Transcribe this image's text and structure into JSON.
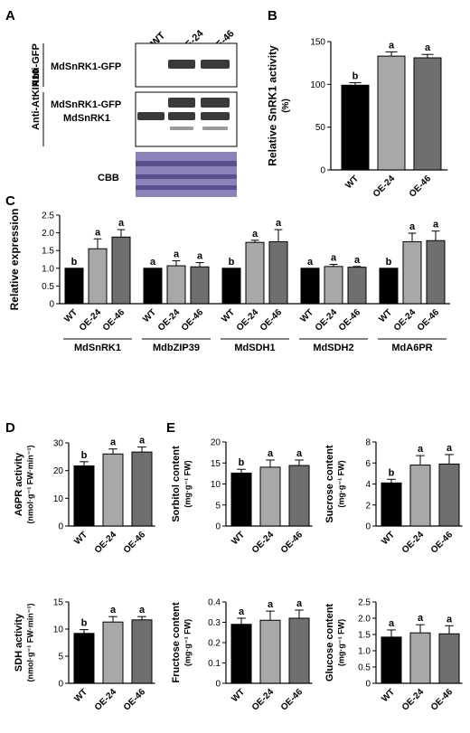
{
  "colors": {
    "wt": "#000000",
    "oe24": "#a8a8a8",
    "oe46": "#6f6f6f",
    "blot_band": "#3a3a3a",
    "cbb_gel": "#8c84b8",
    "cbb_band": "#5a4f90"
  },
  "panel_letters": {
    "a": "A",
    "b": "B",
    "c": "C",
    "d": "D",
    "e": "E"
  },
  "blot": {
    "lanes": [
      "WT",
      "OE-24",
      "OE-46"
    ],
    "antibody_gfp": "Anti-GFP",
    "antibody_snf": "Anti-AtKIN10",
    "top_band_label": "MdSnRK1-GFP",
    "mid_band_label_1": "MdSnRK1-GFP",
    "mid_band_label_2": "MdSnRK1",
    "cbb_label": "CBB"
  },
  "groups": [
    "WT",
    "OE-24",
    "OE-46"
  ],
  "chart_data": [
    {
      "id": "B",
      "type": "bar",
      "categories": [
        "WT",
        "OE-24",
        "OE-46"
      ],
      "values": [
        99,
        133,
        131
      ],
      "errors": [
        3,
        5,
        4
      ],
      "letters": [
        "b",
        "a",
        "a"
      ],
      "ylabel": "Relative SnRK1 activity\n(%)",
      "ylim": [
        0,
        150
      ],
      "yticks": [
        0,
        50,
        100,
        150
      ]
    },
    {
      "id": "C",
      "type": "bar",
      "genes": [
        "MdSnRK1",
        "MdbZIP39",
        "MdSDH1",
        "MdSDH2",
        "MdA6PR"
      ],
      "series": [
        {
          "name": "WT",
          "values": [
            1.0,
            1.0,
            1.0,
            1.0,
            1.0
          ],
          "errors": [
            0,
            0,
            0,
            0,
            0
          ]
        },
        {
          "name": "OE-24",
          "values": [
            1.55,
            1.07,
            1.73,
            1.05,
            1.75
          ],
          "errors": [
            0.28,
            0.14,
            0.06,
            0.06,
            0.24
          ]
        },
        {
          "name": "OE-46",
          "values": [
            1.88,
            1.04,
            1.75,
            1.03,
            1.78
          ],
          "errors": [
            0.21,
            0.12,
            0.34,
            0.02,
            0.27
          ]
        }
      ],
      "letters": [
        [
          "b",
          "a",
          "a"
        ],
        [
          "a",
          "a",
          "a"
        ],
        [
          "b",
          "a",
          "a"
        ],
        [
          "a",
          "a",
          "a"
        ],
        [
          "b",
          "a",
          "a"
        ]
      ],
      "ylabel": "Relative expression",
      "ylim": [
        0,
        2.5
      ],
      "yticks": [
        0,
        0.5,
        1.0,
        1.5,
        2.0,
        2.5
      ]
    },
    {
      "id": "D1",
      "type": "bar",
      "categories": [
        "WT",
        "OE-24",
        "OE-46"
      ],
      "values": [
        21.7,
        26.0,
        26.7
      ],
      "errors": [
        1.5,
        1.8,
        1.8
      ],
      "letters": [
        "b",
        "a",
        "a"
      ],
      "ylabel": "A6PR activity\n(nmol·g⁻¹ FW·min⁻¹)",
      "ylim": [
        0,
        30
      ],
      "yticks": [
        0,
        10,
        20,
        30
      ]
    },
    {
      "id": "D2",
      "type": "bar",
      "categories": [
        "WT",
        "OE-24",
        "OE-46"
      ],
      "values": [
        9.2,
        11.3,
        11.7
      ],
      "errors": [
        0.7,
        1.0,
        0.6
      ],
      "letters": [
        "b",
        "a",
        "a"
      ],
      "ylabel": "SDH activity\n(nmol·g⁻¹ FW·min⁻¹)",
      "ylim": [
        0,
        15
      ],
      "yticks": [
        0,
        5,
        10,
        15
      ]
    },
    {
      "id": "E1",
      "type": "bar",
      "categories": [
        "WT",
        "OE-24",
        "OE-46"
      ],
      "values": [
        12.6,
        14.0,
        14.4
      ],
      "errors": [
        0.9,
        1.7,
        1.3
      ],
      "letters": [
        "b",
        "a",
        "a"
      ],
      "ylabel": "Sorbitol content\n(mg·g⁻¹ FW)",
      "ylim": [
        0,
        20
      ],
      "yticks": [
        0,
        5,
        10,
        15,
        20
      ]
    },
    {
      "id": "E2",
      "type": "bar",
      "categories": [
        "WT",
        "OE-24",
        "OE-46"
      ],
      "values": [
        4.1,
        5.8,
        5.9
      ],
      "errors": [
        0.35,
        0.9,
        0.9
      ],
      "letters": [
        "b",
        "a",
        "a"
      ],
      "ylabel": "Sucrose content\n(mg·g⁻¹ FW)",
      "ylim": [
        0,
        8
      ],
      "yticks": [
        0,
        2,
        4,
        6,
        8
      ]
    },
    {
      "id": "E3",
      "type": "bar",
      "categories": [
        "WT",
        "OE-24",
        "OE-46"
      ],
      "values": [
        0.29,
        0.31,
        0.32
      ],
      "errors": [
        0.03,
        0.045,
        0.04
      ],
      "letters": [
        "a",
        "a",
        "a"
      ],
      "ylabel": "Fructose content\n(mg·g⁻¹ FW)",
      "ylim": [
        0,
        0.4
      ],
      "yticks": [
        0,
        0.1,
        0.2,
        0.3,
        0.4
      ]
    },
    {
      "id": "E4",
      "type": "bar",
      "categories": [
        "WT",
        "OE-24",
        "OE-46"
      ],
      "values": [
        1.42,
        1.55,
        1.52
      ],
      "errors": [
        0.22,
        0.25,
        0.25
      ],
      "letters": [
        "a",
        "a",
        "a"
      ],
      "ylabel": "Glucose content\n(mg·g⁻¹ FW)",
      "ylim": [
        0,
        2.5
      ],
      "yticks": [
        0,
        0.5,
        1.0,
        1.5,
        2.0,
        2.5
      ]
    }
  ]
}
